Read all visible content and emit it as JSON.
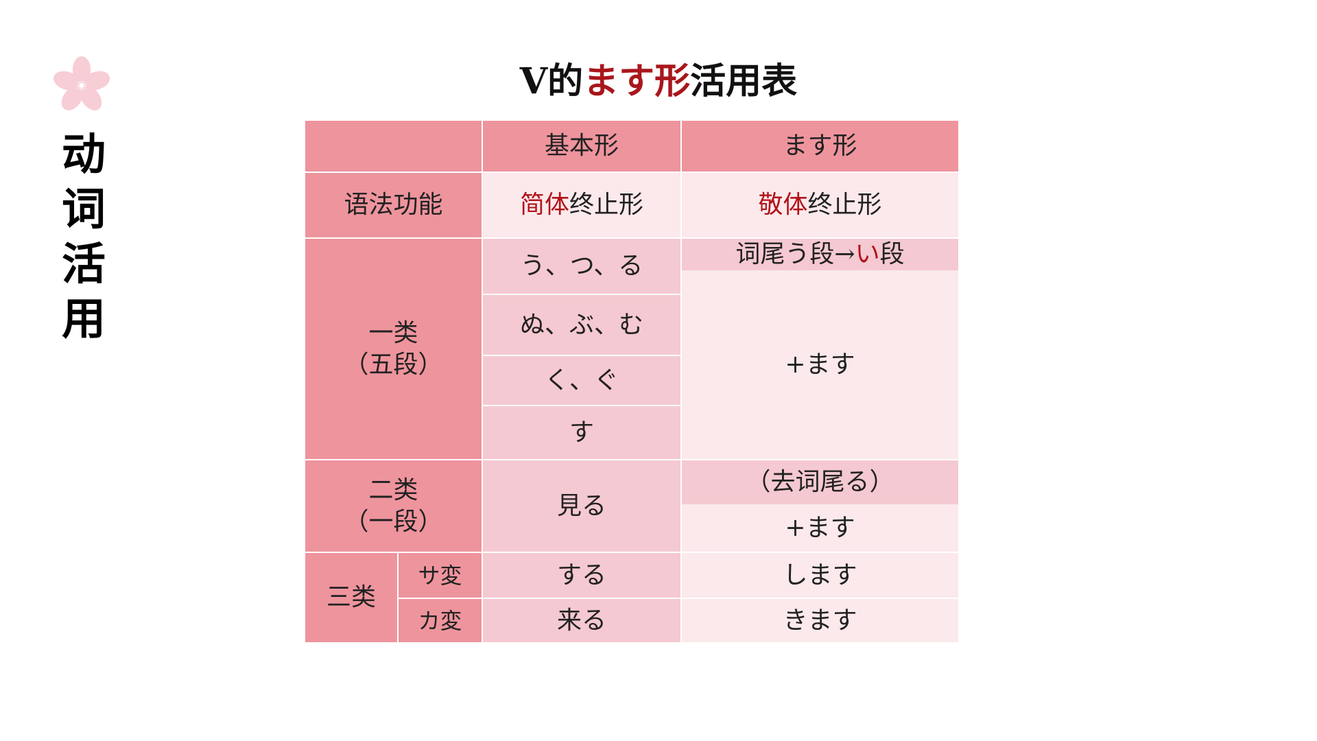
{
  "sidebar": {
    "icon": "sakura-flower-icon",
    "title_chars": [
      "动",
      "词",
      "活",
      "用"
    ]
  },
  "title": {
    "prefix": "V的",
    "highlight": "ます形",
    "suffix": "活用表"
  },
  "colors": {
    "header": "#ee949d",
    "mid": "#f5c9d1",
    "light": "#fbe9ec",
    "accent_red": "#b0141a"
  },
  "table": {
    "headers": {
      "empty": "",
      "basic": "基本形",
      "masu": "ます形"
    },
    "function_row": {
      "label": "语法功能",
      "basic_red": "简体",
      "basic_rest": "终止形",
      "masu_red": "敬体",
      "masu_rest": "终止形"
    },
    "group1": {
      "label_line1": "一类",
      "label_line2": "（五段）",
      "endings": [
        "う、つ、る",
        "ぬ、ぶ、む",
        "く、ぐ",
        "す"
      ],
      "rule_prefix": "词尾う段→",
      "rule_red": "い",
      "rule_suffix": "段",
      "add": "+ます"
    },
    "group2": {
      "label_line1": "二类",
      "label_line2": "（一段）",
      "example": "見る",
      "rule": "（去词尾る）",
      "add": "+ます"
    },
    "group3": {
      "label": "三类",
      "rows": [
        {
          "type": "サ変",
          "basic": "する",
          "masu": "します"
        },
        {
          "type": "カ変",
          "basic": "来る",
          "masu": "きます"
        }
      ]
    }
  }
}
